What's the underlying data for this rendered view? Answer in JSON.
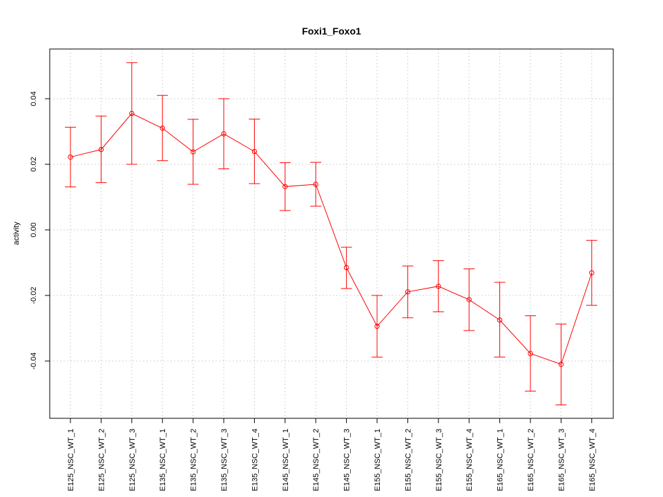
{
  "chart_data": {
    "type": "line",
    "title": "Foxi1_Foxo1",
    "xlabel": "",
    "ylabel": "activity",
    "ylim": [
      -0.057,
      0.055
    ],
    "grid": true,
    "color": "#ff0000",
    "yticks": [
      -0.04,
      -0.02,
      0.0,
      0.02,
      0.04
    ],
    "ytick_labels": [
      "-0.04",
      "-0.02",
      "0.00",
      "0.02",
      "0.04"
    ],
    "categories": [
      "E125_NSC_WT_1",
      "E125_NSC_WT_2",
      "E125_NSC_WT_3",
      "E135_NSC_WT_1",
      "E135_NSC_WT_2",
      "E135_NSC_WT_3",
      "E135_NSC_WT_4",
      "E145_NSC_WT_1",
      "E145_NSC_WT_2",
      "E145_NSC_WT_3",
      "E155_NSC_WT_1",
      "E155_NSC_WT_2",
      "E155_NSC_WT_3",
      "E155_NSC_WT_4",
      "E165_NSC_WT_1",
      "E165_NSC_WT_2",
      "E165_NSC_WT_3",
      "E165_NSC_WT_4"
    ],
    "values": [
      0.0222,
      0.0245,
      0.0355,
      0.031,
      0.0238,
      0.0293,
      0.0239,
      0.0132,
      0.0139,
      -0.0115,
      -0.0294,
      -0.0189,
      -0.0172,
      -0.0213,
      -0.0275,
      -0.0377,
      -0.041,
      -0.0131
    ],
    "lower": [
      0.0131,
      0.0144,
      0.02,
      0.0211,
      0.0139,
      0.0186,
      0.0141,
      0.0059,
      0.0072,
      -0.0179,
      -0.0388,
      -0.0268,
      -0.025,
      -0.0307,
      -0.0388,
      -0.0492,
      -0.0534,
      -0.023
    ],
    "upper": [
      0.0313,
      0.0347,
      0.051,
      0.041,
      0.0337,
      0.04,
      0.0338,
      0.0205,
      0.0206,
      -0.0053,
      -0.02,
      -0.011,
      -0.0094,
      -0.0119,
      -0.016,
      -0.0262,
      -0.0287,
      -0.0032
    ]
  }
}
